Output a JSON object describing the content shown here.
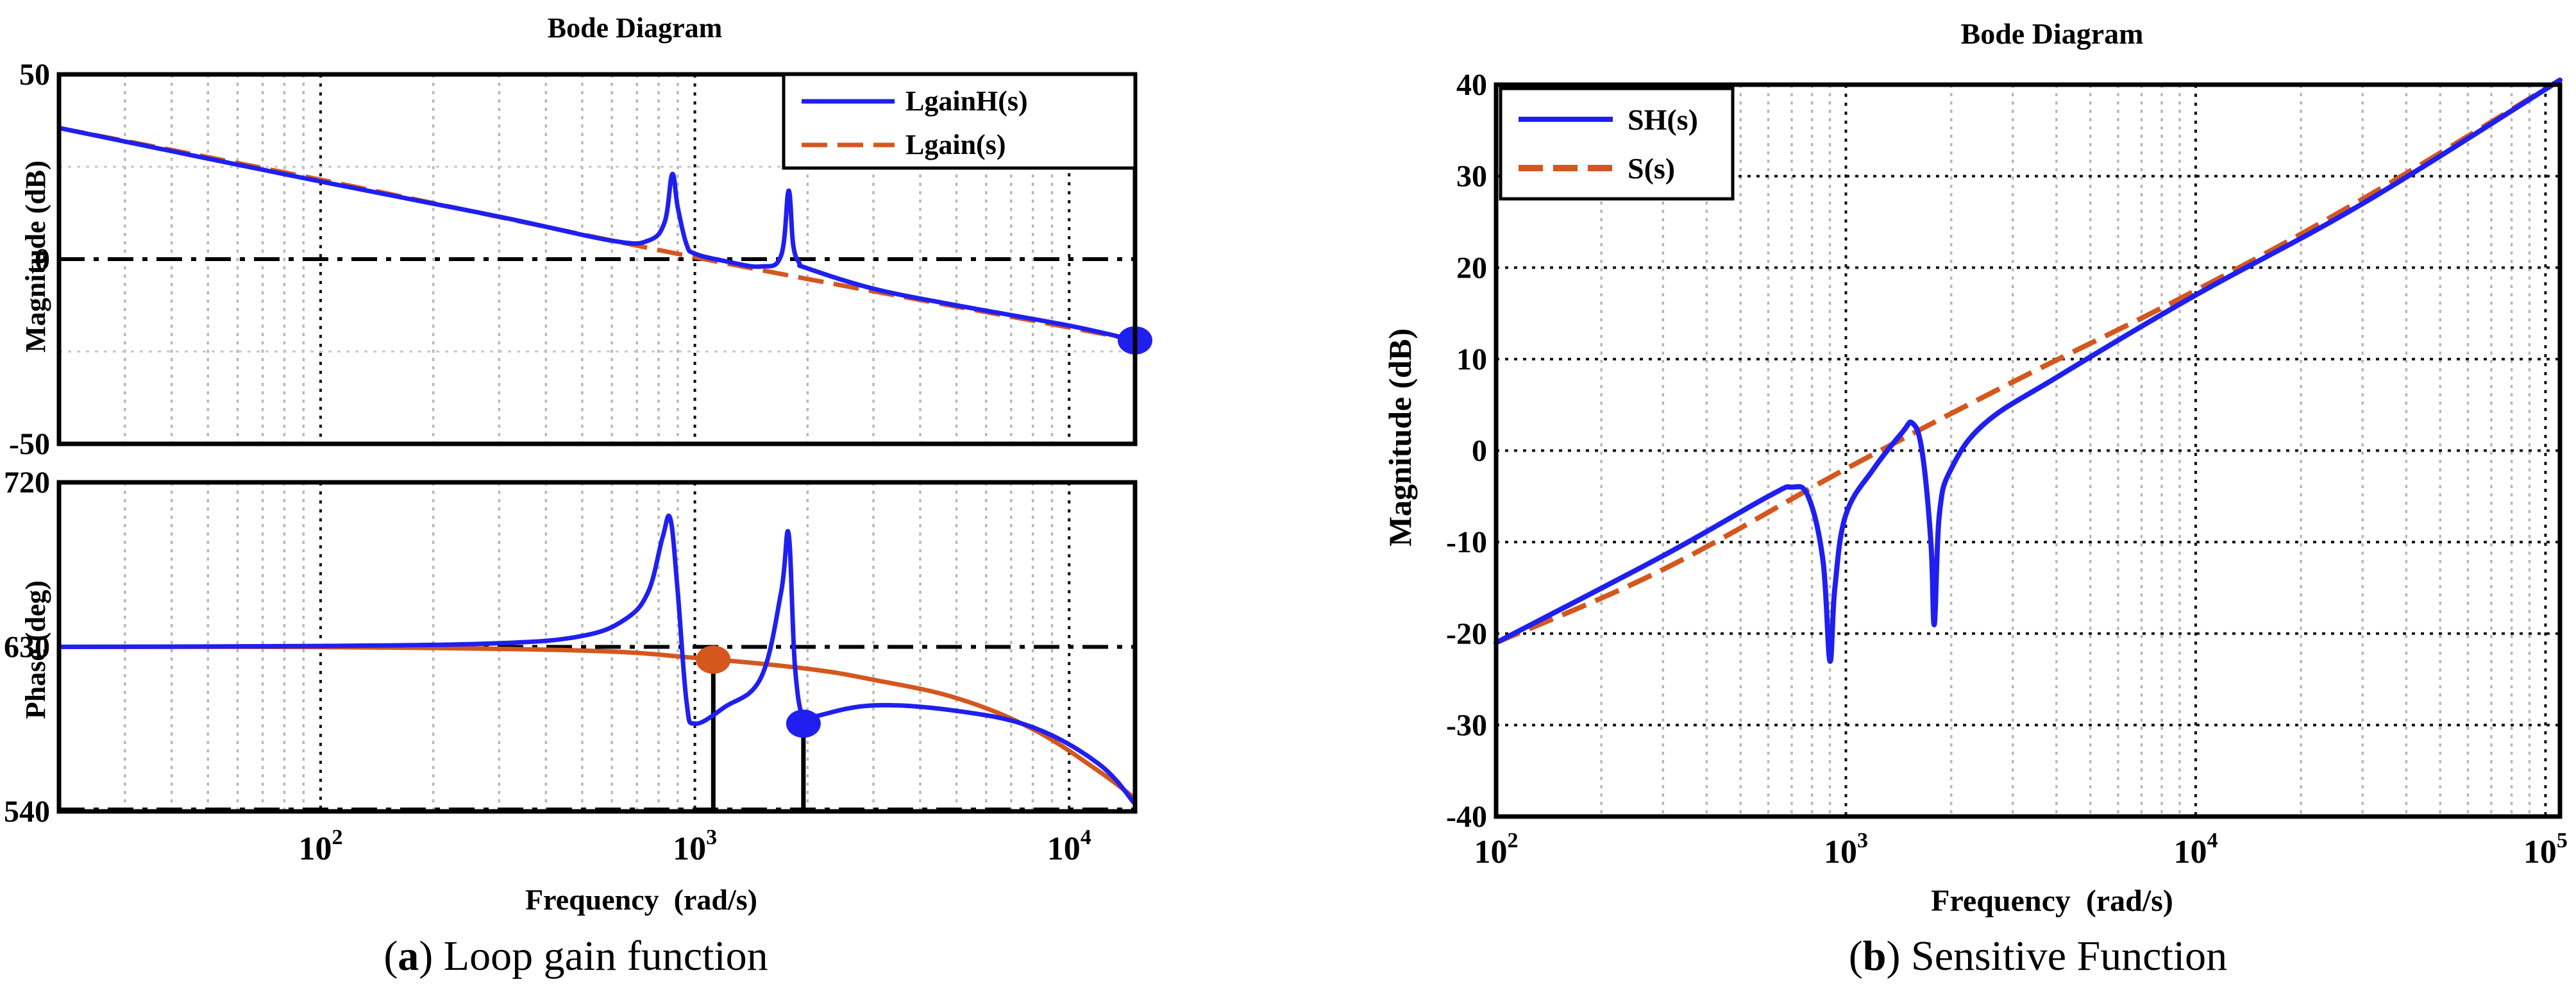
{
  "captions": {
    "a": {
      "letter": "a",
      "text": " Loop gain function"
    },
    "b": {
      "letter": "b",
      "text": " Sensitive Function"
    }
  },
  "colors": {
    "blue": "#1f1ff0",
    "orange": "#d4571e",
    "black": "#000000"
  },
  "chart_data": [
    {
      "id": "loop_gain_magnitude",
      "type": "line",
      "title": "Bode Diagram",
      "xlabel": "",
      "ylabel": "Magnitude (dB)",
      "xscale": "log",
      "xlim": [
        20,
        15000
      ],
      "ylim": [
        -50,
        50
      ],
      "yticks": [
        -50,
        0,
        50
      ],
      "grid": true,
      "legend_position": "top-right",
      "reference_line_y": 0,
      "series": [
        {
          "name": "LgainH(s)",
          "color": "#1f1ff0",
          "style": "solid",
          "x": [
            20,
            100,
            300,
            600,
            750,
            830,
            870,
            900,
            950,
            1000,
            1200,
            1500,
            1700,
            1780,
            1830,
            1900,
            2000,
            3000,
            5000,
            10000,
            15000
          ],
          "y": [
            35.5,
            21,
            11.5,
            5,
            5,
            10,
            23,
            14,
            4,
            1.5,
            -0.5,
            -2,
            1,
            18.5,
            4,
            -1,
            -2.5,
            -8,
            -12.5,
            -18,
            -22
          ]
        },
        {
          "name": "Lgain(s)",
          "color": "#d4571e",
          "style": "dashed",
          "x": [
            20,
            100,
            1000,
            10000,
            15000
          ],
          "y": [
            35.5,
            21.5,
            0.5,
            -18.5,
            -22
          ]
        }
      ],
      "markers": [
        {
          "x": 15000,
          "y": -22,
          "color": "#1f1ff0"
        }
      ]
    },
    {
      "id": "loop_gain_phase",
      "type": "line",
      "title": "",
      "xlabel": "Frequency  (rad/s)",
      "ylabel": "Phase (deg)",
      "xscale": "log",
      "xlim": [
        20,
        15000
      ],
      "ylim": [
        540,
        720
      ],
      "yticks": [
        540,
        630,
        720
      ],
      "xticks": [
        {
          "value": 100,
          "base": "10",
          "exp": "2"
        },
        {
          "value": 1000,
          "base": "10",
          "exp": "3"
        },
        {
          "value": 10000,
          "base": "10",
          "exp": "4"
        }
      ],
      "grid": true,
      "reference_line_y": 630,
      "series": [
        {
          "name": "LgainH(s)",
          "color": "#1f1ff0",
          "style": "solid",
          "x": [
            20,
            100,
            300,
            500,
            650,
            750,
            820,
            860,
            900,
            950,
            1000,
            1200,
            1500,
            1700,
            1780,
            1850,
            1950,
            2100,
            3000,
            5000,
            8000,
            12000,
            15000
          ],
          "y": [
            630,
            630.5,
            632,
            636,
            645,
            660,
            690,
            700,
            660,
            600,
            588,
            597,
            613,
            660,
            692,
            620,
            590,
            592,
            598,
            595,
            586,
            566,
            544
          ]
        },
        {
          "name": "Lgain(s)",
          "color": "#d4571e",
          "style": "solid",
          "x": [
            20,
            100,
            500,
            1000,
            2000,
            3000,
            5000,
            8000,
            12000,
            15000
          ],
          "y": [
            630,
            629.9,
            628,
            624,
            618,
            612,
            602,
            585,
            562,
            547
          ]
        }
      ],
      "markers": [
        {
          "x": 1120,
          "y": 623,
          "color": "#d4571e",
          "drop_line": true
        },
        {
          "x": 1950,
          "y": 588,
          "color": "#1f1ff0",
          "drop_line": true
        }
      ]
    },
    {
      "id": "sensitivity_magnitude",
      "type": "line",
      "title": "Bode Diagram",
      "xlabel": "Frequency  (rad/s)",
      "ylabel": "Magnitude (dB)",
      "xscale": "log",
      "xlim": [
        100,
        110000
      ],
      "ylim": [
        -40,
        40
      ],
      "yticks": [
        -40,
        -30,
        -20,
        -10,
        0,
        10,
        20,
        30,
        40
      ],
      "xticks": [
        {
          "value": 100,
          "base": "10",
          "exp": "2"
        },
        {
          "value": 1000,
          "base": "10",
          "exp": "3"
        },
        {
          "value": 10000,
          "base": "10",
          "exp": "4"
        },
        {
          "value": 100000,
          "base": "10",
          "exp": "5"
        }
      ],
      "grid": true,
      "legend_position": "top-left",
      "series": [
        {
          "name": "SH(s)",
          "color": "#1f1ff0",
          "style": "solid",
          "x": [
            100,
            300,
            600,
            700,
            780,
            860,
            900,
            930,
            1000,
            1200,
            1450,
            1550,
            1650,
            1750,
            1790,
            1850,
            2000,
            2500,
            4000,
            10000,
            30000,
            110000
          ],
          "y": [
            -21,
            -11.5,
            -5,
            -4,
            -5,
            -12,
            -23,
            -15,
            -7,
            -2,
            2,
            3,
            0,
            -10,
            -19,
            -7,
            -2,
            3,
            8,
            17,
            27,
            40.5
          ]
        },
        {
          "name": "S(s)",
          "color": "#d4571e",
          "style": "dashed",
          "x": [
            100,
            300,
            1000,
            3000,
            10000,
            30000,
            110000
          ],
          "y": [
            -21,
            -13,
            -2,
            7.5,
            17.5,
            27.5,
            40.5
          ]
        }
      ]
    }
  ]
}
